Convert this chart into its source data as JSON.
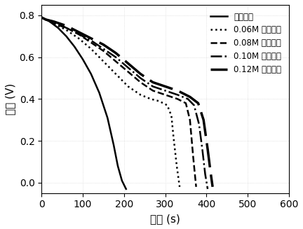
{
  "title": "",
  "xlabel": "时间 (s)",
  "ylabel": "电压 (V)",
  "xlim": [
    0,
    600
  ],
  "ylim": [
    -0.05,
    0.85
  ],
  "xticks": [
    0,
    100,
    200,
    300,
    400,
    500,
    600
  ],
  "yticks": [
    0.0,
    0.2,
    0.4,
    0.6,
    0.8
  ],
  "background_color": "#ffffff",
  "series": [
    {
      "label": "纯石墨毡",
      "linestyle": "solid",
      "linewidth": 1.8,
      "color": "#000000",
      "x": [
        0,
        10,
        20,
        40,
        60,
        80,
        100,
        120,
        140,
        160,
        175,
        185,
        195,
        205
      ],
      "y": [
        0.79,
        0.78,
        0.77,
        0.74,
        0.7,
        0.65,
        0.59,
        0.52,
        0.43,
        0.31,
        0.18,
        0.08,
        0.01,
        -0.03
      ]
    },
    {
      "label": "0.06M 苯胺单体",
      "linestyle": "dotted",
      "linewidth": 1.8,
      "color": "#000000",
      "x": [
        0,
        10,
        30,
        60,
        90,
        120,
        150,
        180,
        210,
        240,
        265,
        285,
        305,
        315,
        320,
        328,
        335
      ],
      "y": [
        0.79,
        0.78,
        0.76,
        0.73,
        0.69,
        0.64,
        0.58,
        0.52,
        0.46,
        0.42,
        0.4,
        0.39,
        0.37,
        0.32,
        0.22,
        0.08,
        -0.02
      ]
    },
    {
      "label": "0.08M 苯胺单体",
      "linestyle": "dashed",
      "linewidth": 1.8,
      "color": "#000000",
      "x": [
        0,
        10,
        30,
        60,
        90,
        120,
        150,
        180,
        210,
        240,
        270,
        300,
        330,
        350,
        360,
        368,
        375
      ],
      "y": [
        0.79,
        0.78,
        0.76,
        0.74,
        0.71,
        0.67,
        0.63,
        0.58,
        0.53,
        0.48,
        0.44,
        0.42,
        0.4,
        0.38,
        0.3,
        0.12,
        -0.02
      ]
    },
    {
      "label": "0.10M 苯胺单体",
      "linestyle": "dashdot",
      "linewidth": 1.8,
      "color": "#000000",
      "x": [
        0,
        10,
        30,
        60,
        90,
        120,
        150,
        180,
        210,
        240,
        270,
        300,
        330,
        355,
        370,
        382,
        390,
        397,
        403
      ],
      "y": [
        0.79,
        0.78,
        0.77,
        0.74,
        0.71,
        0.68,
        0.64,
        0.6,
        0.55,
        0.5,
        0.46,
        0.44,
        0.42,
        0.4,
        0.37,
        0.28,
        0.16,
        0.04,
        -0.03
      ]
    },
    {
      "label": "0.12M 苯胺单体",
      "linestyle": "dashed",
      "linewidth": 2.5,
      "color": "#000000",
      "dash_pattern": [
        10,
        3
      ],
      "x": [
        0,
        10,
        30,
        60,
        90,
        120,
        150,
        180,
        210,
        240,
        270,
        300,
        330,
        360,
        380,
        393,
        403,
        410,
        415
      ],
      "y": [
        0.79,
        0.78,
        0.77,
        0.75,
        0.72,
        0.69,
        0.66,
        0.62,
        0.57,
        0.52,
        0.48,
        0.46,
        0.44,
        0.41,
        0.38,
        0.3,
        0.16,
        0.05,
        -0.02
      ]
    }
  ],
  "legend_loc": "upper right",
  "legend_fontsize": 8.5,
  "axis_label_fontsize": 11,
  "tick_fontsize": 10,
  "grid_color": "#d0d0d0",
  "grid_linewidth": 0.5
}
